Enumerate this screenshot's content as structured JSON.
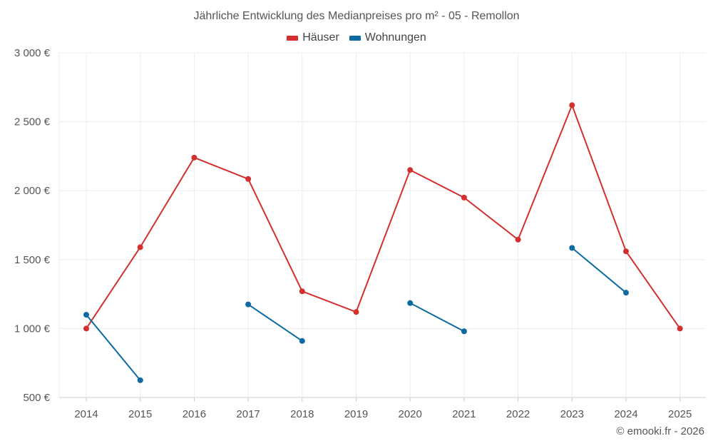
{
  "chart_data": {
    "type": "line",
    "title": "Jährliche Entwicklung des Medianpreises pro m² - 05 - Remollon",
    "categories": [
      "2014",
      "2015",
      "2016",
      "2017",
      "2018",
      "2019",
      "2020",
      "2021",
      "2022",
      "2023",
      "2024",
      "2025"
    ],
    "y_ticks": [
      "500 €",
      "1 000 €",
      "1 500 €",
      "2 000 €",
      "2 500 €",
      "3 000 €"
    ],
    "ylim": [
      500,
      3000
    ],
    "series": [
      {
        "name": "Häuser",
        "color": "#d32f2f",
        "values": [
          1000,
          1590,
          2240,
          2085,
          1270,
          1120,
          2150,
          1950,
          1645,
          2620,
          1560,
          1000
        ]
      },
      {
        "name": "Wohnungen",
        "color": "#0a6aa1",
        "values": [
          1100,
          625,
          null,
          1175,
          910,
          null,
          1185,
          980,
          null,
          1585,
          1260,
          null
        ]
      }
    ],
    "grid": true,
    "legend": "top-center"
  },
  "credit": "© emooki.fr - 2026"
}
